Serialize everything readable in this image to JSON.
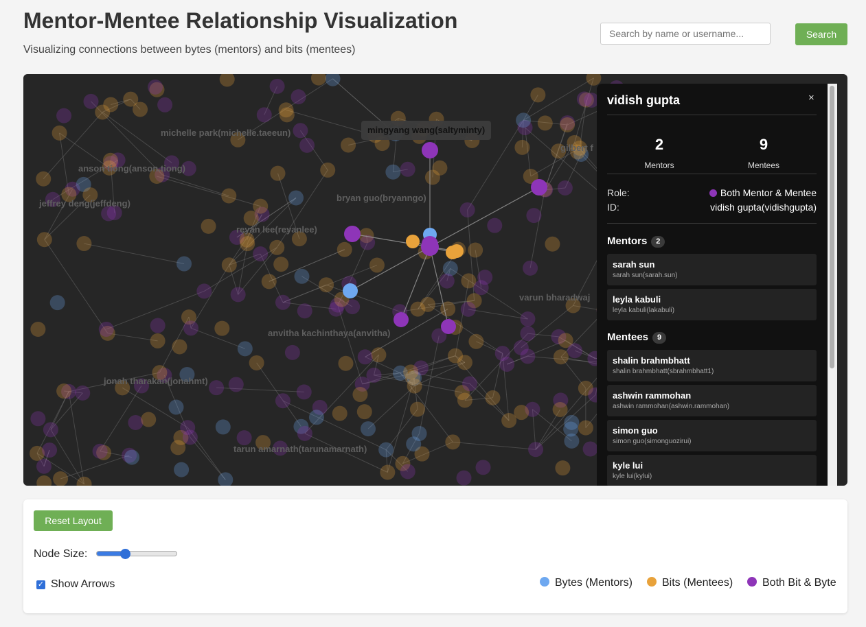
{
  "header": {
    "title": "Mentor-Mentee Relationship Visualization",
    "subtitle": "Visualizing connections between bytes (mentors) and bits (mentees)",
    "search_placeholder": "Search by name or username...",
    "search_button": "Search"
  },
  "colors": {
    "byte": "#6ea8f0",
    "bit": "#e8a23b",
    "both": "#8e35b8",
    "accent_button": "#6faf55"
  },
  "graph": {
    "hover_label": "mingyang wang(saltyminty)",
    "faded_labels": [
      "michelle park(michelle.taeeun)",
      "anson tiong(anson.tiong)",
      "jeffrey deng(jeffdeng)",
      "reyan lee(reyanlee)",
      "bryan guo(bryanngo)",
      "gilbert f",
      "varun bharadwaj",
      "anvitha kachinthaya(anvitha)",
      "jonah tharakan(jonahmt)",
      "tarun amarnath(tarunamarnath)"
    ]
  },
  "details_panel": {
    "name": "vidish gupta",
    "close_icon": "×",
    "mentors_count": "2",
    "mentors_label": "Mentors",
    "mentees_count": "9",
    "mentees_label": "Mentees",
    "role_label": "Role:",
    "role_value": "Both Mentor & Mentee",
    "id_label": "ID:",
    "id_value": "vidish gupta(vidishgupta)",
    "mentors_section": "Mentors",
    "mentors_badge": "2",
    "mentors": [
      {
        "name": "sarah sun",
        "username": "sarah sun(sarah.sun)"
      },
      {
        "name": "leyla kabuli",
        "username": "leyla kabuli(lakabuli)"
      }
    ],
    "mentees_section": "Mentees",
    "mentees_badge": "9",
    "mentees": [
      {
        "name": "shalin brahmbhatt",
        "username": "shalin brahmbhatt(sbrahmbhatt1)"
      },
      {
        "name": "ashwin rammohan",
        "username": "ashwin rammohan(ashwin.rammohan)"
      },
      {
        "name": "simon guo",
        "username": "simon guo(simonguozirui)"
      },
      {
        "name": "kyle lui",
        "username": "kyle lui(kylui)"
      }
    ]
  },
  "controls": {
    "reset_button": "Reset Layout",
    "node_size_label": "Node Size:",
    "node_size_value": 0.35,
    "show_arrows_label": "Show Arrows",
    "show_arrows_checked": true,
    "legend": [
      {
        "label": "Bytes (Mentors)",
        "color": "#6ea8f0"
      },
      {
        "label": "Bits (Mentees)",
        "color": "#e8a23b"
      },
      {
        "label": "Both Bit & Byte",
        "color": "#8e35b8"
      }
    ]
  }
}
